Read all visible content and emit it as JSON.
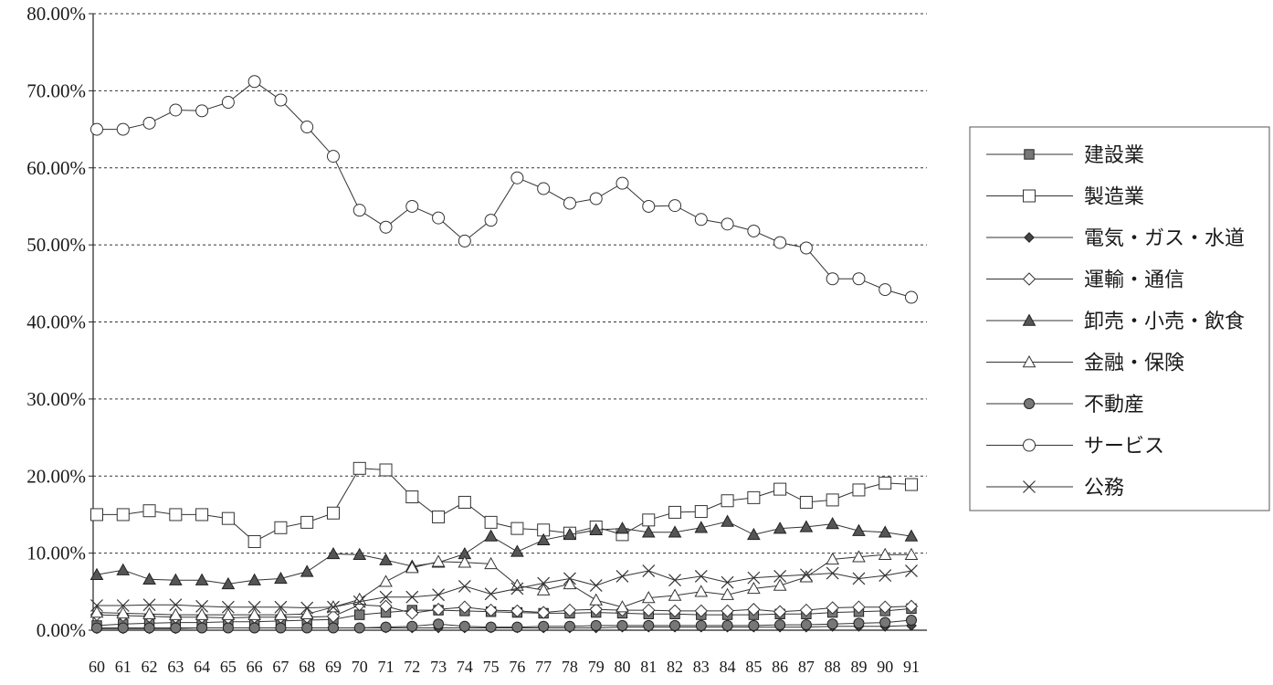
{
  "chart_data": {
    "type": "line",
    "title": "",
    "xlabel": "",
    "ylabel": "",
    "ylim": [
      0,
      80
    ],
    "ytick_labels": [
      "0.00%",
      "10.00%",
      "20.00%",
      "30.00%",
      "40.00%",
      "50.00%",
      "60.00%",
      "70.00%",
      "80.00%"
    ],
    "ytick_values": [
      0,
      10,
      20,
      30,
      40,
      50,
      60,
      70,
      80
    ],
    "grid": "horizontal-dashed",
    "legend_position": "right",
    "categories": [
      "60",
      "61",
      "62",
      "63",
      "64",
      "65",
      "66",
      "67",
      "68",
      "69",
      "70",
      "71",
      "72",
      "73",
      "74",
      "75",
      "76",
      "77",
      "78",
      "79",
      "80",
      "81",
      "82",
      "83",
      "84",
      "85",
      "86",
      "87",
      "88",
      "89",
      "90",
      "91"
    ],
    "series": [
      {
        "name": "建設業",
        "marker": "square-filled",
        "values": [
          0.6,
          0.8,
          0.9,
          1.0,
          1.0,
          1.1,
          1.1,
          1.2,
          1.3,
          1.4,
          2.0,
          2.3,
          2.6,
          2.6,
          2.5,
          2.4,
          2.3,
          2.2,
          2.2,
          2.3,
          2.2,
          2.1,
          2.1,
          2.0,
          2.0,
          2.0,
          2.1,
          2.1,
          2.3,
          2.4,
          2.5,
          2.8
        ]
      },
      {
        "name": "製造業",
        "marker": "square-open",
        "values": [
          15.0,
          15.0,
          15.5,
          15.0,
          15.0,
          14.5,
          11.5,
          13.3,
          14.0,
          15.2,
          21.0,
          20.8,
          17.3,
          14.7,
          16.6,
          14.0,
          13.2,
          13.0,
          12.6,
          13.4,
          12.4,
          14.3,
          15.3,
          15.4,
          16.8,
          17.2,
          18.3,
          16.6,
          16.9,
          18.2,
          19.1,
          18.9
        ]
      },
      {
        "name": "電気・ガス・水道",
        "marker": "diamond-filled",
        "values": [
          0.2,
          0.2,
          0.2,
          0.2,
          0.3,
          0.3,
          0.3,
          0.3,
          0.3,
          0.3,
          0.3,
          0.3,
          0.3,
          0.3,
          0.3,
          0.3,
          0.3,
          0.3,
          0.3,
          0.3,
          0.4,
          0.4,
          0.4,
          0.4,
          0.4,
          0.4,
          0.4,
          0.4,
          0.5,
          0.5,
          0.5,
          0.6
        ]
      },
      {
        "name": "運輸・通信",
        "marker": "diamond-open",
        "values": [
          2.0,
          1.9,
          1.8,
          1.7,
          1.7,
          1.6,
          1.7,
          1.7,
          1.7,
          1.8,
          3.3,
          3.1,
          2.2,
          2.7,
          3.0,
          2.6,
          2.5,
          2.3,
          2.6,
          2.7,
          2.6,
          2.6,
          2.5,
          2.5,
          2.5,
          2.7,
          2.4,
          2.6,
          2.9,
          3.0,
          3.0,
          3.1
        ]
      },
      {
        "name": "卸売・小売・飲食",
        "marker": "triangle-filled",
        "values": [
          7.2,
          7.8,
          6.6,
          6.5,
          6.5,
          6.0,
          6.5,
          6.7,
          7.6,
          9.9,
          9.8,
          9.1,
          8.3,
          8.8,
          9.9,
          12.2,
          10.2,
          11.7,
          12.4,
          13.0,
          13.2,
          12.7,
          12.7,
          13.3,
          14.1,
          12.4,
          13.2,
          13.4,
          13.8,
          12.9,
          12.7,
          12.2
        ]
      },
      {
        "name": "金融・保険",
        "marker": "triangle-open",
        "values": [
          2.3,
          2.2,
          2.1,
          2.0,
          2.0,
          2.0,
          2.0,
          2.0,
          2.1,
          3.0,
          4.0,
          6.3,
          8.1,
          8.9,
          8.8,
          8.6,
          5.8,
          5.2,
          6.0,
          3.9,
          3.0,
          4.2,
          4.5,
          5.0,
          4.6,
          5.4,
          5.8,
          6.9,
          9.2,
          9.5,
          9.8,
          9.8
        ]
      },
      {
        "name": "不動産",
        "marker": "circle-filled",
        "values": [
          0.3,
          0.3,
          0.3,
          0.3,
          0.3,
          0.3,
          0.3,
          0.3,
          0.3,
          0.3,
          0.3,
          0.4,
          0.5,
          0.8,
          0.5,
          0.4,
          0.4,
          0.5,
          0.5,
          0.6,
          0.6,
          0.6,
          0.6,
          0.6,
          0.6,
          0.6,
          0.7,
          0.7,
          0.8,
          0.9,
          1.0,
          1.3
        ]
      },
      {
        "name": "サービス",
        "marker": "circle-open",
        "values": [
          65.0,
          65.0,
          65.8,
          67.5,
          67.4,
          68.5,
          71.2,
          68.8,
          65.3,
          61.5,
          54.5,
          52.3,
          55.0,
          53.5,
          50.5,
          53.2,
          58.7,
          57.3,
          55.4,
          56.0,
          58.0,
          55.0,
          55.1,
          53.3,
          52.7,
          51.8,
          50.3,
          49.6,
          45.6,
          45.6,
          44.2,
          43.2
        ]
      },
      {
        "name": "公務",
        "marker": "x",
        "values": [
          3.2,
          3.2,
          3.3,
          3.3,
          3.1,
          3.0,
          3.0,
          3.0,
          2.9,
          3.0,
          3.7,
          4.3,
          4.3,
          4.6,
          5.7,
          4.7,
          5.4,
          6.1,
          6.7,
          5.8,
          7.0,
          7.7,
          6.5,
          7.0,
          6.2,
          6.8,
          7.0,
          7.2,
          7.4,
          6.7,
          7.1,
          7.7
        ]
      }
    ]
  }
}
